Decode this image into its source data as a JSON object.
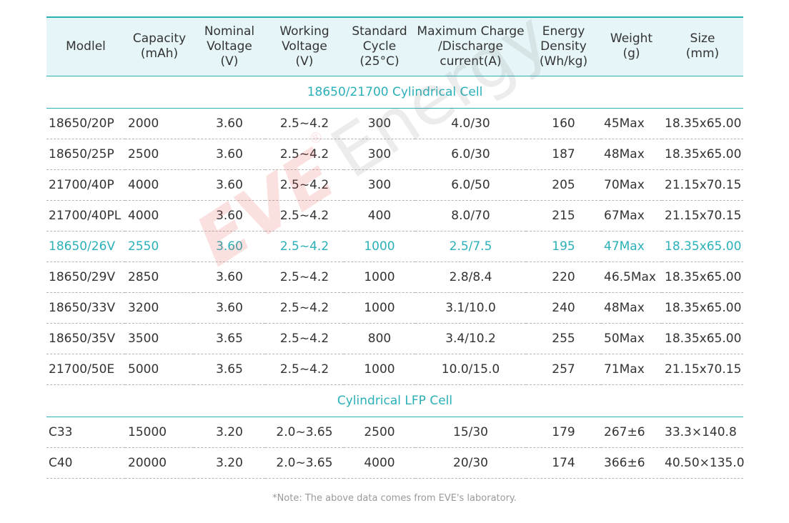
{
  "headers": [
    "Modlel",
    "Capacity\n(mAh)",
    "Nominal\nVoltage\n(V)",
    "Working\nVoltage\n(V)",
    "Standard\nCycle\n(25°C)",
    "Maximum Charge\n/Discharge\ncurrent(A)",
    "Energy\nDensity\n(Wh/kg)",
    "Weight\n(g)",
    "Size\n(mm)"
  ],
  "sections": [
    {
      "title": "18650/21700 Cylindrical Cell",
      "rows": [
        {
          "model": "18650/20P",
          "capacity": "2000",
          "nominal": "3.60",
          "working": "2.5~4.2",
          "cycle": "300",
          "current": "4.0/30",
          "density": "160",
          "weight": "45Max",
          "size": "18.35x65.00"
        },
        {
          "model": "18650/25P",
          "capacity": "2500",
          "nominal": "3.60",
          "working": "2.5~4.2",
          "cycle": "300",
          "current": "6.0/30",
          "density": "187",
          "weight": "48Max",
          "size": "18.35x65.00"
        },
        {
          "model": "21700/40P",
          "capacity": "4000",
          "nominal": "3.60",
          "working": "2.5~4.2",
          "cycle": "300",
          "current": "6.0/50",
          "density": "205",
          "weight": "70Max",
          "size": "21.15x70.15"
        },
        {
          "model": "21700/40PL",
          "capacity": "4000",
          "nominal": "3.60",
          "working": "2.5~4.2",
          "cycle": "400",
          "current": "8.0/70",
          "density": "215",
          "weight": "67Max",
          "size": "21.15x70.15"
        },
        {
          "model": "18650/26V",
          "capacity": "2550",
          "nominal": "3.60",
          "working": "2.5~4.2",
          "cycle": "1000",
          "current": "2.5/7.5",
          "density": "195",
          "weight": "47Max",
          "size": "18.35x65.00",
          "highlight": true
        },
        {
          "model": "18650/29V",
          "capacity": "2850",
          "nominal": "3.60",
          "working": "2.5~4.2",
          "cycle": "1000",
          "current": "2.8/8.4",
          "density": "220",
          "weight": "46.5Max",
          "size": "18.35x65.00"
        },
        {
          "model": "18650/33V",
          "capacity": "3200",
          "nominal": "3.60",
          "working": "2.5~4.2",
          "cycle": "1000",
          "current": "3.1/10.0",
          "density": "240",
          "weight": "48Max",
          "size": "18.35x65.00"
        },
        {
          "model": "18650/35V",
          "capacity": "3500",
          "nominal": "3.65",
          "working": "2.5~4.2",
          "cycle": "800",
          "current": "3.4/10.2",
          "density": "255",
          "weight": "50Max",
          "size": "18.35x65.00"
        },
        {
          "model": "21700/50E",
          "capacity": "5000",
          "nominal": "3.65",
          "working": "2.5~4.2",
          "cycle": "1000",
          "current": "10.0/15.0",
          "density": "257",
          "weight": "71Max",
          "size": "21.15x70.15"
        }
      ]
    },
    {
      "title": "Cylindrical LFP Cell",
      "rows": [
        {
          "model": "C33",
          "capacity": "15000",
          "nominal": "3.20",
          "working": "2.0~3.65",
          "cycle": "2500",
          "current": "15/30",
          "density": "179",
          "weight": "267±6",
          "size": "33.3×140.8"
        },
        {
          "model": "C40",
          "capacity": "20000",
          "nominal": "3.20",
          "working": "2.0~3.65",
          "cycle": "4000",
          "current": "20/30",
          "density": "174",
          "weight": "366±6",
          "size": "40.50×135.0"
        }
      ]
    }
  ],
  "note": "*Note: The above data comes from EVE's laboratory.",
  "watermark": {
    "brand": "EVE",
    "registered": "®",
    "word": "Energy"
  },
  "colors": {
    "accent": "#2bb0b8",
    "header_bg": "#e6f6f8",
    "text": "#333333",
    "note": "#9a9a9a"
  }
}
